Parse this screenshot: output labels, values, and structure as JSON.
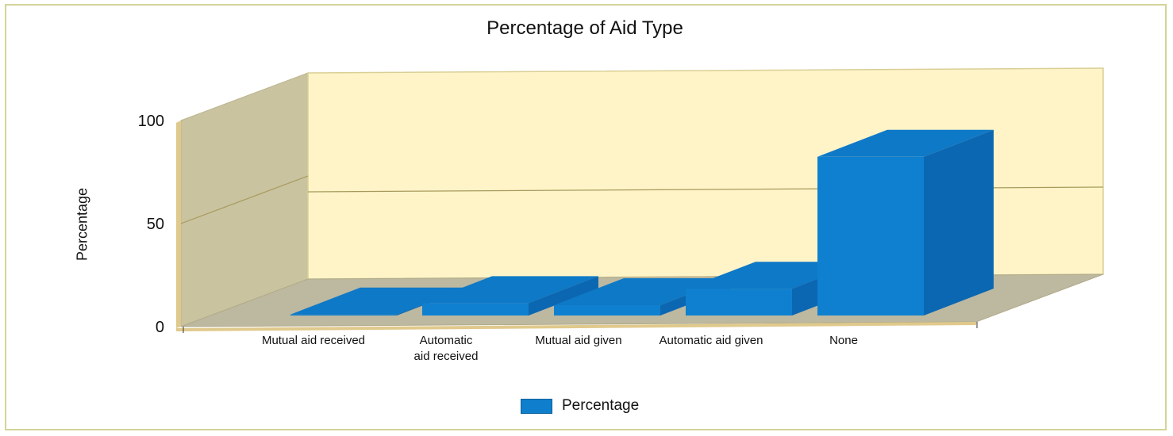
{
  "chart_data": {
    "type": "bar",
    "title": "Percentage of Aid Type",
    "xlabel": "",
    "ylabel": "Percentage",
    "ylim": [
      0,
      100
    ],
    "yticks": [
      "0",
      "50",
      "100"
    ],
    "categories": [
      "Mutual aid received",
      "Automatic aid received",
      "Mutual aid given",
      "Automatic aid given",
      "None"
    ],
    "series": [
      {
        "name": "Percentage",
        "values": [
          0.5,
          6,
          5,
          13,
          77
        ]
      }
    ],
    "legend": {
      "position": "bottom",
      "label": "Percentage"
    },
    "grid": true,
    "three_d": true
  },
  "colors": {
    "bar_front": "#0f80cf",
    "bar_top": "#0e79c7",
    "bar_side": "#0b67b2",
    "back_wall": "#fff4c8",
    "side_wall": "#c9c3a0",
    "floor": "#bdb8a0"
  }
}
